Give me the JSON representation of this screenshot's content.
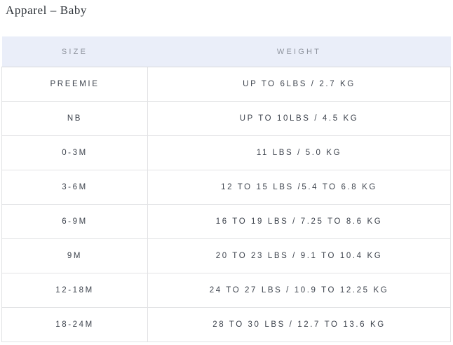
{
  "page": {
    "title": "Apparel – Baby"
  },
  "colors": {
    "header_background": "#eaeef9",
    "header_text": "#8f949e",
    "body_text": "#3d434d",
    "border": "#e2e3e5",
    "page_background": "#ffffff"
  },
  "table": {
    "columns": [
      {
        "label": "SIZE"
      },
      {
        "label": "WEIGHT"
      }
    ],
    "rows": [
      {
        "size": "PREEMIE",
        "weight": "UP TO 6LBS / 2.7 KG"
      },
      {
        "size": "NB",
        "weight": "UP TO 10LBS / 4.5 KG"
      },
      {
        "size": "0-3M",
        "weight": "11 LBS / 5.0 KG"
      },
      {
        "size": "3-6M",
        "weight": "12 TO 15 LBS /5.4 TO 6.8 KG"
      },
      {
        "size": "6-9M",
        "weight": "16 TO 19 LBS / 7.25 TO 8.6 KG"
      },
      {
        "size": "9M",
        "weight": "20 TO 23 LBS / 9.1 TO 10.4 KG"
      },
      {
        "size": "12-18M",
        "weight": "24 TO 27 LBS / 10.9 TO 12.25 KG"
      },
      {
        "size": "18-24M",
        "weight": "28 TO 30 LBS / 12.7 TO 13.6 KG"
      }
    ]
  }
}
